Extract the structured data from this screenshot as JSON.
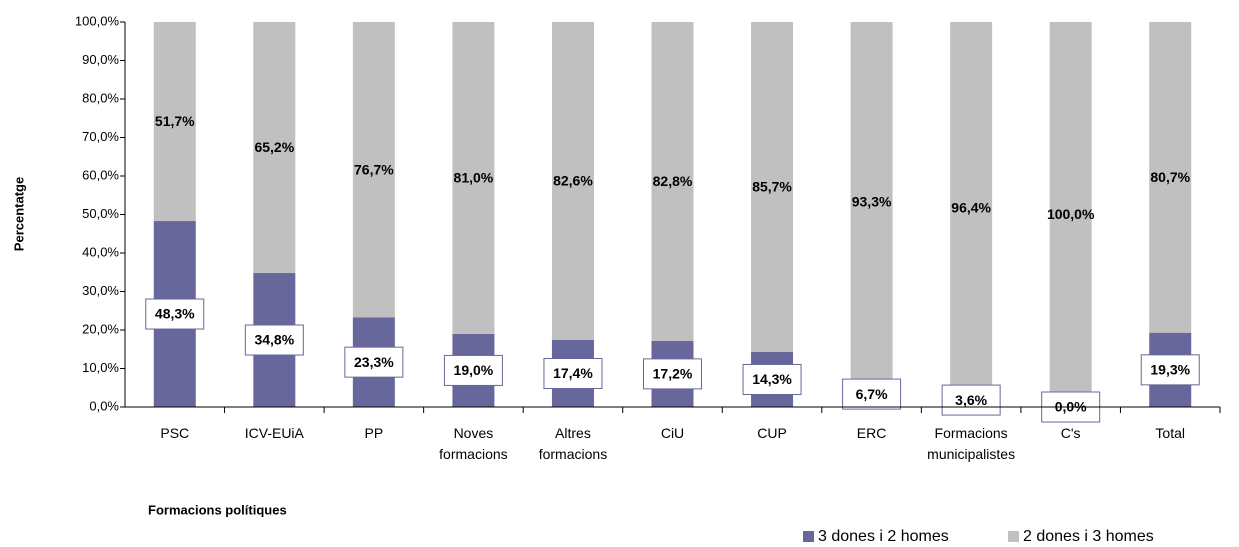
{
  "chart_data": {
    "type": "stacked_bar",
    "x_label": "Formacions polítiques",
    "y_label": "Percentatge",
    "categories": [
      "PSC",
      "ICV-EUiA",
      "PP",
      "Noves formacions",
      "Altres formacions",
      "CiU",
      "CUP",
      "ERC",
      "Formacions municipalistes",
      "C's",
      "Total"
    ],
    "series": [
      {
        "name": "3 dones i 2 homes",
        "color": "#67679b",
        "values": [
          48.3,
          34.8,
          23.3,
          19.0,
          17.4,
          17.2,
          14.3,
          6.7,
          3.6,
          0.0,
          19.3
        ],
        "value_labels": [
          "48,3%",
          "34,8%",
          "23,3%",
          "19,0%",
          "17,4%",
          "17,2%",
          "14,3%",
          "6,7%",
          "3,6%",
          "0,0%",
          "19,3%"
        ]
      },
      {
        "name": "2 dones i 3 homes",
        "color": "#c0c0c0",
        "values": [
          51.7,
          65.2,
          76.7,
          81.0,
          82.6,
          82.8,
          85.7,
          93.3,
          96.4,
          100.0,
          80.7
        ],
        "value_labels": [
          "51,7%",
          "65,2%",
          "76,7%",
          "81,0%",
          "82,6%",
          "82,8%",
          "85,7%",
          "93,3%",
          "96,4%",
          "100,0%",
          "80,7%"
        ]
      }
    ],
    "ylim": [
      0,
      100
    ],
    "yticks": [
      {
        "value": 0,
        "label": "0,0%"
      },
      {
        "value": 10,
        "label": "10,0%"
      },
      {
        "value": 20,
        "label": "20,0%"
      },
      {
        "value": 30,
        "label": "30,0%"
      },
      {
        "value": 40,
        "label": "40,0%"
      },
      {
        "value": 50,
        "label": "50,0%"
      },
      {
        "value": 60,
        "label": "60,0%"
      },
      {
        "value": 70,
        "label": "70,0%"
      },
      {
        "value": 80,
        "label": "80,0%"
      },
      {
        "value": 90,
        "label": "90,0%"
      },
      {
        "value": 100,
        "label": "100,0%"
      }
    ],
    "legend": "bottom-right"
  }
}
